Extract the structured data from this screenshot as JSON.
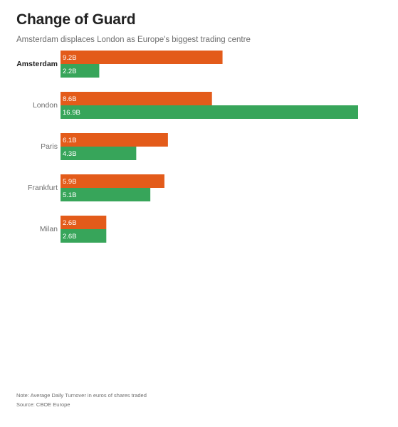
{
  "title": "Change of Guard",
  "subtitle": "Amsterdam displaces London as Europe's biggest trading centre",
  "note": "Note: Average Daily Turnover in euros of shares traded",
  "source": "Source: CBOE Europe",
  "colors": {
    "orange": "#e35b1a",
    "green": "#37a55a"
  },
  "chart_data": {
    "type": "bar",
    "orientation": "horizontal",
    "categories": [
      "Amsterdam",
      "London",
      "Paris",
      "Frankfurt",
      "Milan"
    ],
    "highlighted_category": "Amsterdam",
    "series": [
      {
        "values": [
          9.2,
          8.6,
          6.1,
          5.9,
          2.6
        ],
        "labels": [
          "9.2B",
          "8.6B",
          "6.1B",
          "5.9B",
          "2.6B"
        ],
        "color": "#e35b1a"
      },
      {
        "values": [
          2.2,
          16.9,
          4.3,
          5.1,
          2.6
        ],
        "labels": [
          "2.2B",
          "16.9B",
          "4.3B",
          "5.1B",
          "2.6B"
        ],
        "color": "#37a55a"
      }
    ],
    "title": "Change of Guard",
    "subtitle": "Amsterdam displaces London as Europe's biggest trading centre",
    "xlabel": "",
    "ylabel": "",
    "xlim": [
      0,
      16.9
    ],
    "grid": false,
    "legend": "none"
  }
}
